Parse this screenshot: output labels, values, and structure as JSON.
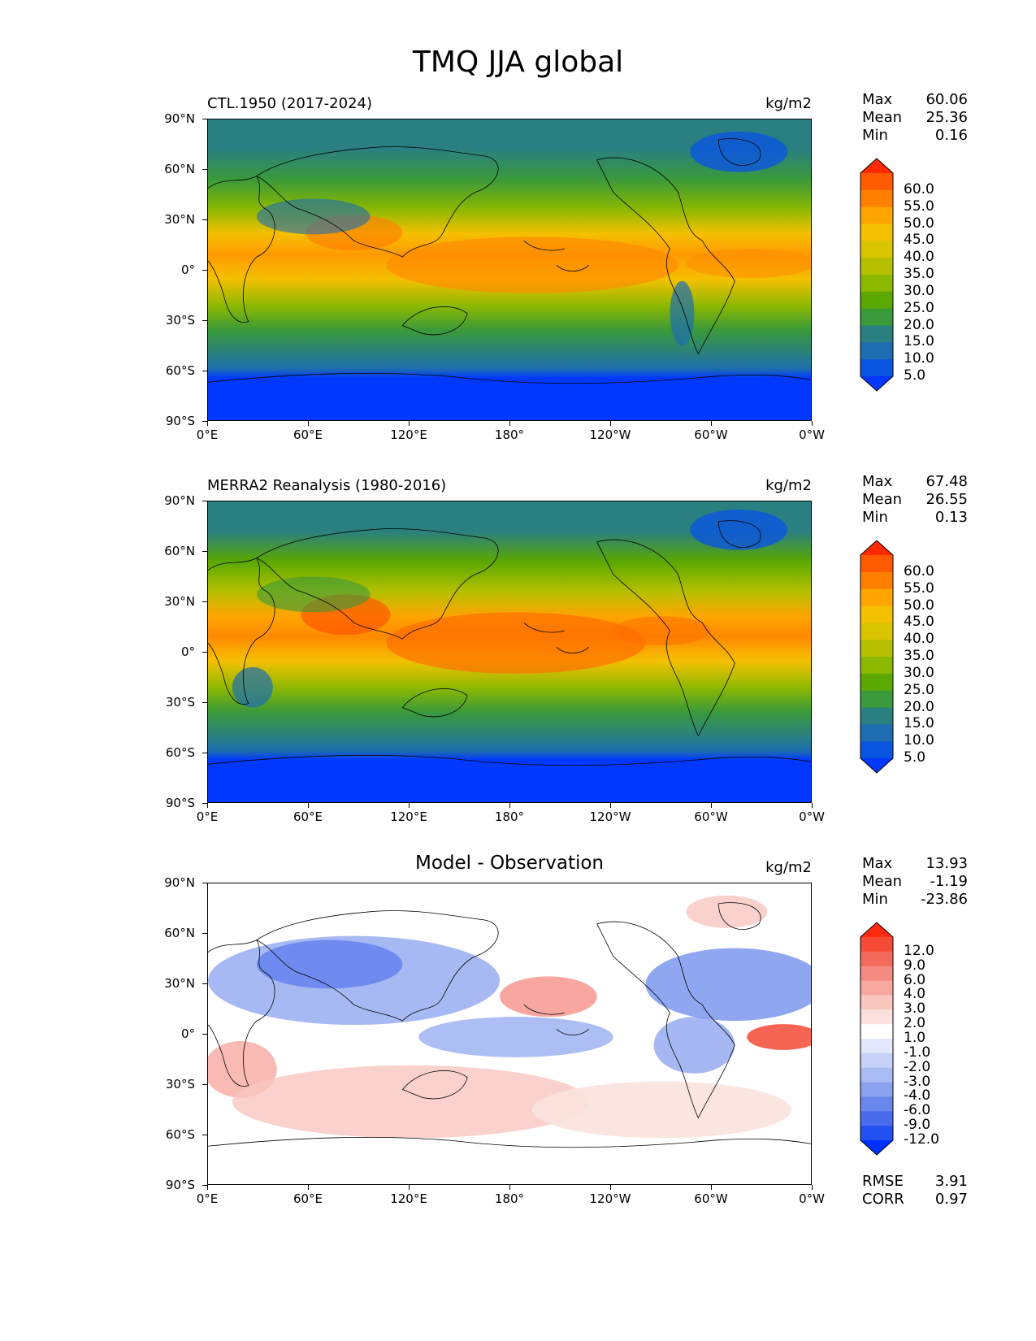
{
  "figure": {
    "title": "TMQ JJA global"
  },
  "axes": {
    "lat_labels": [
      "90°N",
      "60°N",
      "30°N",
      "0°",
      "30°S",
      "60°S",
      "90°S"
    ],
    "lon_labels": [
      "0°E",
      "60°E",
      "120°E",
      "180°",
      "120°W",
      "60°W",
      "0°W"
    ]
  },
  "panels": [
    {
      "title": "CTL.1950 (2017-2024)",
      "units": "kg/m2",
      "stats": {
        "max_label": "Max",
        "max": "60.06",
        "mean_label": "Mean",
        "mean": "25.36",
        "min_label": "Min",
        "min": "0.16"
      },
      "colorbar": {
        "labels": [
          "60.0",
          "55.0",
          "50.0",
          "45.0",
          "40.0",
          "35.0",
          "30.0",
          "25.0",
          "20.0",
          "15.0",
          "10.0",
          "5.0"
        ],
        "colors": [
          "#ff2a00",
          "#ff5a00",
          "#ff7f00",
          "#ffa500",
          "#f5c000",
          "#d9c400",
          "#b5c000",
          "#8db800",
          "#5aa800",
          "#3a9a3a",
          "#2a8080",
          "#1e6db0",
          "#0a55e0",
          "#0038ff"
        ]
      }
    },
    {
      "title": "MERRA2 Reanalysis (1980-2016)",
      "units": "kg/m2",
      "stats": {
        "max_label": "Max",
        "max": "67.48",
        "mean_label": "Mean",
        "mean": "26.55",
        "min_label": "Min",
        "min": "0.13"
      },
      "colorbar": {
        "labels": [
          "60.0",
          "55.0",
          "50.0",
          "45.0",
          "40.0",
          "35.0",
          "30.0",
          "25.0",
          "20.0",
          "15.0",
          "10.0",
          "5.0"
        ],
        "colors": [
          "#ff2a00",
          "#ff5a00",
          "#ff7f00",
          "#ffa500",
          "#f5c000",
          "#d9c400",
          "#b5c000",
          "#8db800",
          "#5aa800",
          "#3a9a3a",
          "#2a8080",
          "#1e6db0",
          "#0a55e0",
          "#0038ff"
        ]
      }
    },
    {
      "title": "Model - Observation",
      "units": "kg/m2",
      "stats": {
        "max_label": "Max",
        "max": "13.93",
        "mean_label": "Mean",
        "mean": "-1.19",
        "min_label": "Min",
        "min": "-23.86"
      },
      "colorbar": {
        "labels": [
          "12.0",
          "9.0",
          "6.0",
          "4.0",
          "3.0",
          "2.0",
          "1.0",
          "-1.0",
          "-2.0",
          "-3.0",
          "-4.0",
          "-6.0",
          "-9.0",
          "-12.0"
        ],
        "colors": [
          "#ff2a10",
          "#f54a35",
          "#f36a5a",
          "#f58a80",
          "#f7a9a0",
          "#f9c6c0",
          "#fbe2de",
          "#ffffff",
          "#e2e8fa",
          "#c6d2f7",
          "#a9bbf3",
          "#8aa2ef",
          "#6a88ec",
          "#4a6cec",
          "#2050f0",
          "#0030ff"
        ]
      },
      "extra": {
        "rmse_label": "RMSE",
        "rmse": "3.91",
        "corr_label": "CORR",
        "corr": "0.97"
      }
    }
  ]
}
